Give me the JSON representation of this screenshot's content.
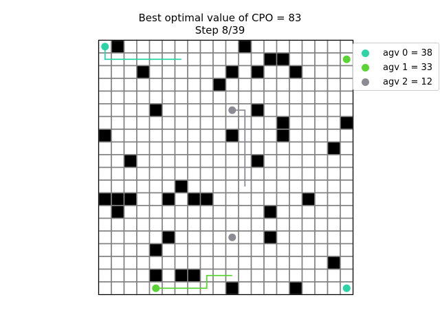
{
  "title": {
    "line1": "Best optimal value of CPO = 83",
    "line2": "Step 8/39"
  },
  "grid": {
    "rows": 20,
    "cols": 20,
    "obstacles": [
      [
        0,
        1
      ],
      [
        0,
        11
      ],
      [
        1,
        13
      ],
      [
        1,
        14
      ],
      [
        2,
        3
      ],
      [
        2,
        10
      ],
      [
        2,
        12
      ],
      [
        2,
        15
      ],
      [
        3,
        9
      ],
      [
        5,
        4
      ],
      [
        5,
        12
      ],
      [
        6,
        14
      ],
      [
        6,
        19
      ],
      [
        7,
        0
      ],
      [
        7,
        10
      ],
      [
        7,
        14
      ],
      [
        8,
        18
      ],
      [
        9,
        2
      ],
      [
        9,
        12
      ],
      [
        11,
        6
      ],
      [
        12,
        0
      ],
      [
        12,
        1
      ],
      [
        12,
        2
      ],
      [
        12,
        5
      ],
      [
        12,
        7
      ],
      [
        12,
        8
      ],
      [
        12,
        16
      ],
      [
        13,
        1
      ],
      [
        13,
        13
      ],
      [
        15,
        5
      ],
      [
        15,
        13
      ],
      [
        16,
        4
      ],
      [
        17,
        18
      ],
      [
        18,
        4
      ],
      [
        18,
        6
      ],
      [
        18,
        7
      ],
      [
        19,
        10
      ],
      [
        19,
        15
      ]
    ]
  },
  "agents": [
    {
      "name": "agv 0",
      "value": 38,
      "legend": "agv 0 = 38",
      "color": "#2ad4a4",
      "path": [
        [
          0,
          0
        ],
        [
          1,
          0
        ],
        [
          1,
          6
        ]
      ],
      "position": [
        0,
        0
      ],
      "goal": [
        19,
        19
      ]
    },
    {
      "name": "agv 1",
      "value": 33,
      "legend": "agv 1 = 33",
      "color": "#5ad335",
      "path": [
        [
          19,
          4
        ],
        [
          19,
          8
        ],
        [
          18,
          8
        ],
        [
          18,
          10
        ]
      ],
      "position": [
        19,
        4
      ],
      "goal": [
        1,
        19
      ]
    },
    {
      "name": "agv 2",
      "value": 12,
      "legend": "agv 2 = 12",
      "color": "#8c8a93",
      "path": [
        [
          5,
          10
        ],
        [
          5,
          11
        ],
        [
          11,
          11
        ]
      ],
      "position": [
        5,
        10
      ],
      "goal": [
        15,
        10
      ]
    }
  ]
}
